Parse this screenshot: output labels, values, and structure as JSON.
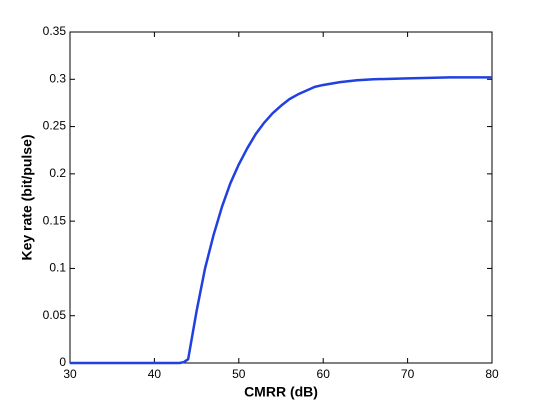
{
  "chart_data": {
    "type": "line",
    "x_label": "CMRR (dB)",
    "y_label": "Key rate (bit/pulse)",
    "x": [
      30,
      43,
      43.5,
      44,
      45,
      46,
      47,
      48,
      49,
      50,
      51,
      52,
      53,
      54,
      55,
      56,
      57,
      58,
      59,
      60,
      62,
      64,
      66,
      70,
      75,
      80
    ],
    "series": [
      {
        "name": "Key rate",
        "color": "#2040e0",
        "values": [
          0,
          0,
          0.001,
          0.004,
          0.055,
          0.1,
          0.135,
          0.165,
          0.19,
          0.21,
          0.227,
          0.242,
          0.254,
          0.264,
          0.272,
          0.279,
          0.284,
          0.288,
          0.292,
          0.294,
          0.297,
          0.299,
          0.3,
          0.301,
          0.302,
          0.302
        ]
      }
    ],
    "xlim": [
      30,
      80
    ],
    "xticks": [
      30,
      40,
      50,
      60,
      70,
      80
    ],
    "ylim": [
      0,
      0.35
    ],
    "yticks": [
      0,
      0.05,
      0.1,
      0.15,
      0.2,
      0.25,
      0.3,
      0.35
    ],
    "grid": false
  }
}
